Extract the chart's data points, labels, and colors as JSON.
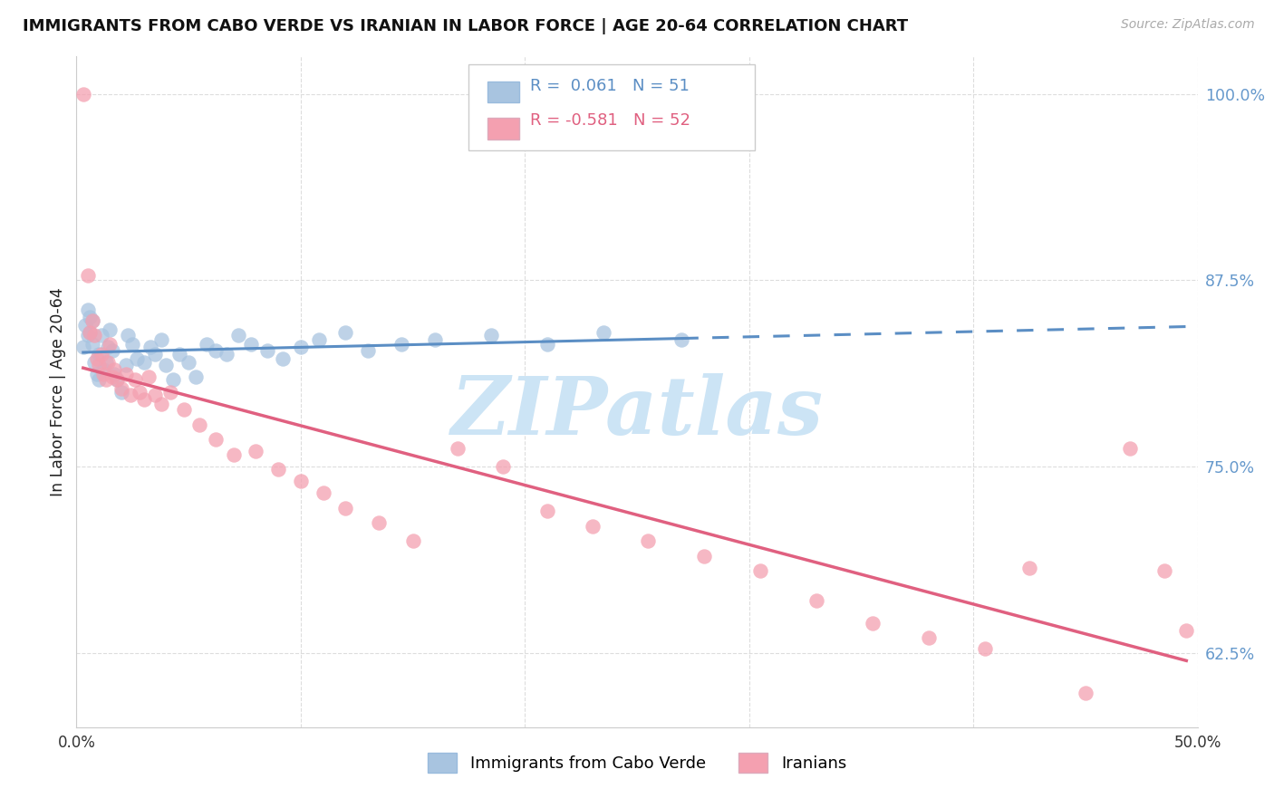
{
  "title": "IMMIGRANTS FROM CABO VERDE VS IRANIAN IN LABOR FORCE | AGE 20-64 CORRELATION CHART",
  "source": "Source: ZipAtlas.com",
  "ylabel": "In Labor Force | Age 20-64",
  "xlim": [
    0.0,
    0.5
  ],
  "ylim": [
    0.575,
    1.025
  ],
  "yticks": [
    0.625,
    0.75,
    0.875,
    1.0
  ],
  "ytick_labels": [
    "62.5%",
    "75.0%",
    "87.5%",
    "100.0%"
  ],
  "xticks": [
    0.0,
    0.1,
    0.2,
    0.3,
    0.4,
    0.5
  ],
  "xtick_labels": [
    "0.0%",
    "",
    "",
    "",
    "",
    "50.0%"
  ],
  "cabo_verde_color": "#a8c4e0",
  "iranian_color": "#f4a0b0",
  "cabo_verde_line_color": "#5b8ec4",
  "iranian_line_color": "#e06080",
  "cabo_verde_R": "0.061",
  "cabo_verde_N": "51",
  "iranian_R": "-0.581",
  "iranian_N": "52",
  "cabo_verde_scatter_x": [
    0.003,
    0.004,
    0.005,
    0.005,
    0.006,
    0.006,
    0.007,
    0.007,
    0.008,
    0.009,
    0.01,
    0.01,
    0.011,
    0.012,
    0.013,
    0.014,
    0.015,
    0.016,
    0.017,
    0.018,
    0.02,
    0.022,
    0.023,
    0.025,
    0.027,
    0.03,
    0.033,
    0.035,
    0.038,
    0.04,
    0.043,
    0.046,
    0.05,
    0.053,
    0.058,
    0.062,
    0.067,
    0.072,
    0.078,
    0.085,
    0.092,
    0.1,
    0.108,
    0.12,
    0.13,
    0.145,
    0.16,
    0.185,
    0.21,
    0.235,
    0.27
  ],
  "cabo_verde_scatter_y": [
    0.83,
    0.845,
    0.855,
    0.838,
    0.85,
    0.84,
    0.848,
    0.832,
    0.82,
    0.812,
    0.825,
    0.808,
    0.838,
    0.815,
    0.82,
    0.83,
    0.842,
    0.828,
    0.812,
    0.808,
    0.8,
    0.818,
    0.838,
    0.832,
    0.822,
    0.82,
    0.83,
    0.825,
    0.835,
    0.818,
    0.808,
    0.825,
    0.82,
    0.81,
    0.832,
    0.828,
    0.825,
    0.838,
    0.832,
    0.828,
    0.822,
    0.83,
    0.835,
    0.84,
    0.828,
    0.832,
    0.835,
    0.838,
    0.832,
    0.84,
    0.835
  ],
  "iranian_scatter_x": [
    0.003,
    0.005,
    0.006,
    0.007,
    0.008,
    0.009,
    0.01,
    0.011,
    0.012,
    0.013,
    0.014,
    0.015,
    0.016,
    0.017,
    0.018,
    0.02,
    0.022,
    0.024,
    0.026,
    0.028,
    0.03,
    0.032,
    0.035,
    0.038,
    0.042,
    0.048,
    0.055,
    0.062,
    0.07,
    0.08,
    0.09,
    0.1,
    0.11,
    0.12,
    0.135,
    0.15,
    0.17,
    0.19,
    0.21,
    0.23,
    0.255,
    0.28,
    0.305,
    0.33,
    0.355,
    0.38,
    0.405,
    0.425,
    0.45,
    0.47,
    0.485,
    0.495
  ],
  "iranian_scatter_y": [
    1.0,
    0.878,
    0.84,
    0.848,
    0.838,
    0.822,
    0.818,
    0.825,
    0.812,
    0.808,
    0.82,
    0.832,
    0.81,
    0.815,
    0.808,
    0.802,
    0.812,
    0.798,
    0.808,
    0.8,
    0.795,
    0.81,
    0.798,
    0.792,
    0.8,
    0.788,
    0.778,
    0.768,
    0.758,
    0.76,
    0.748,
    0.74,
    0.732,
    0.722,
    0.712,
    0.7,
    0.762,
    0.75,
    0.72,
    0.71,
    0.7,
    0.69,
    0.68,
    0.66,
    0.645,
    0.635,
    0.628,
    0.682,
    0.598,
    0.762,
    0.68,
    0.64
  ],
  "watermark_text": "ZIPatlas",
  "watermark_color": "#cce4f5",
  "background_color": "#ffffff",
  "grid_color": "#dddddd",
  "tick_color_right": "#6699cc",
  "source_color": "#aaaaaa"
}
